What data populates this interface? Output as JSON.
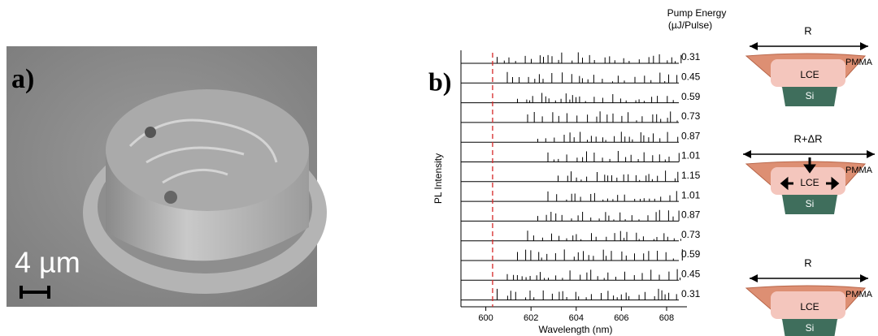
{
  "panel_labels": [
    "a)",
    "b)"
  ],
  "scale_bar": "4 µm",
  "chart_data": {
    "type": "spectra",
    "x_label": "Wavelength (nm)",
    "y_label": "PL Intensity",
    "legend_title": "Pump Energy",
    "legend_unit": "(µJ/Pulse)",
    "trace_labels": [
      0.31,
      0.45,
      0.59,
      0.73,
      0.87,
      1.01,
      1.15,
      1.01,
      0.87,
      0.73,
      0.59,
      0.45,
      0.31
    ],
    "xlim": [
      598.9,
      608.9
    ],
    "xticks": [
      600,
      602,
      604,
      606,
      608
    ],
    "reference_line": 600.3,
    "reference_color": "#d62728"
  },
  "schematic": {
    "states": [
      "R",
      "R+ΔR",
      "R"
    ],
    "layers": {
      "shell": "PMMA",
      "core": "LCE",
      "base": "Si"
    }
  }
}
